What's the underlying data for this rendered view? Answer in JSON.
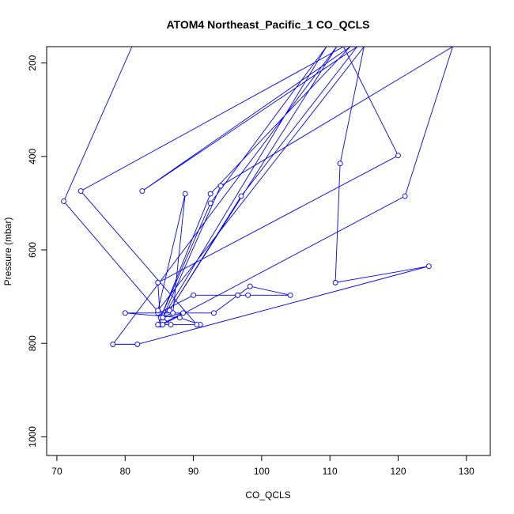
{
  "chart_data": {
    "type": "line",
    "title": "ATOM4 Northeast_Pacific_1 CO_QCLS",
    "xlabel": "CO_QCLS",
    "ylabel": "Pressure (mbar)",
    "xlim": [
      68.5,
      133.5
    ],
    "ylim": [
      1040,
      165
    ],
    "y_reversed": true,
    "xticks": [
      70,
      80,
      90,
      100,
      110,
      120,
      130
    ],
    "yticks": [
      200,
      400,
      600,
      800,
      1000
    ],
    "grid": false,
    "legend": "none",
    "color": "#0000ff",
    "marker": "open-circle",
    "series": [
      {
        "points": [
          [
            81.0,
            165
          ],
          [
            71.0,
            496
          ],
          [
            85.0,
            735
          ],
          [
            90.0,
            697
          ],
          [
            98.0,
            697
          ],
          [
            96.5,
            697
          ],
          [
            98.3,
            678
          ],
          [
            104.2,
            697
          ],
          [
            96.5,
            697
          ],
          [
            93.0,
            735
          ],
          [
            84.8,
            735
          ],
          [
            80.0,
            735
          ],
          [
            88.0,
            745
          ],
          [
            91.0,
            760
          ],
          [
            86.7,
            760
          ],
          [
            85.5,
            745
          ],
          [
            88.5,
            735
          ],
          [
            85.2,
            760
          ],
          [
            84.8,
            670
          ],
          [
            120.0,
            398
          ],
          [
            112.0,
            165
          ],
          [
            73.5,
            474
          ],
          [
            90.5,
            760
          ],
          [
            84.8,
            760
          ],
          [
            92.5,
            480
          ],
          [
            113.0,
            165
          ],
          [
            82.5,
            474
          ],
          [
            114.0,
            165
          ],
          [
            97.0,
            485
          ],
          [
            86.5,
            730
          ],
          [
            111.0,
            165
          ],
          [
            78.2,
            802
          ],
          [
            81.8,
            802
          ],
          [
            124.5,
            635
          ],
          [
            110.8,
            670
          ],
          [
            111.5,
            415
          ],
          [
            115.0,
            165
          ],
          [
            84.8,
            730
          ],
          [
            88.8,
            480
          ],
          [
            87.0,
            735
          ],
          [
            85.2,
            745
          ],
          [
            92.5,
            500
          ],
          [
            109.5,
            165
          ],
          [
            85.5,
            745
          ],
          [
            94.0,
            463
          ],
          [
            128.0,
            165
          ],
          [
            121.0,
            485
          ],
          [
            85.5,
            760
          ]
        ]
      }
    ]
  }
}
